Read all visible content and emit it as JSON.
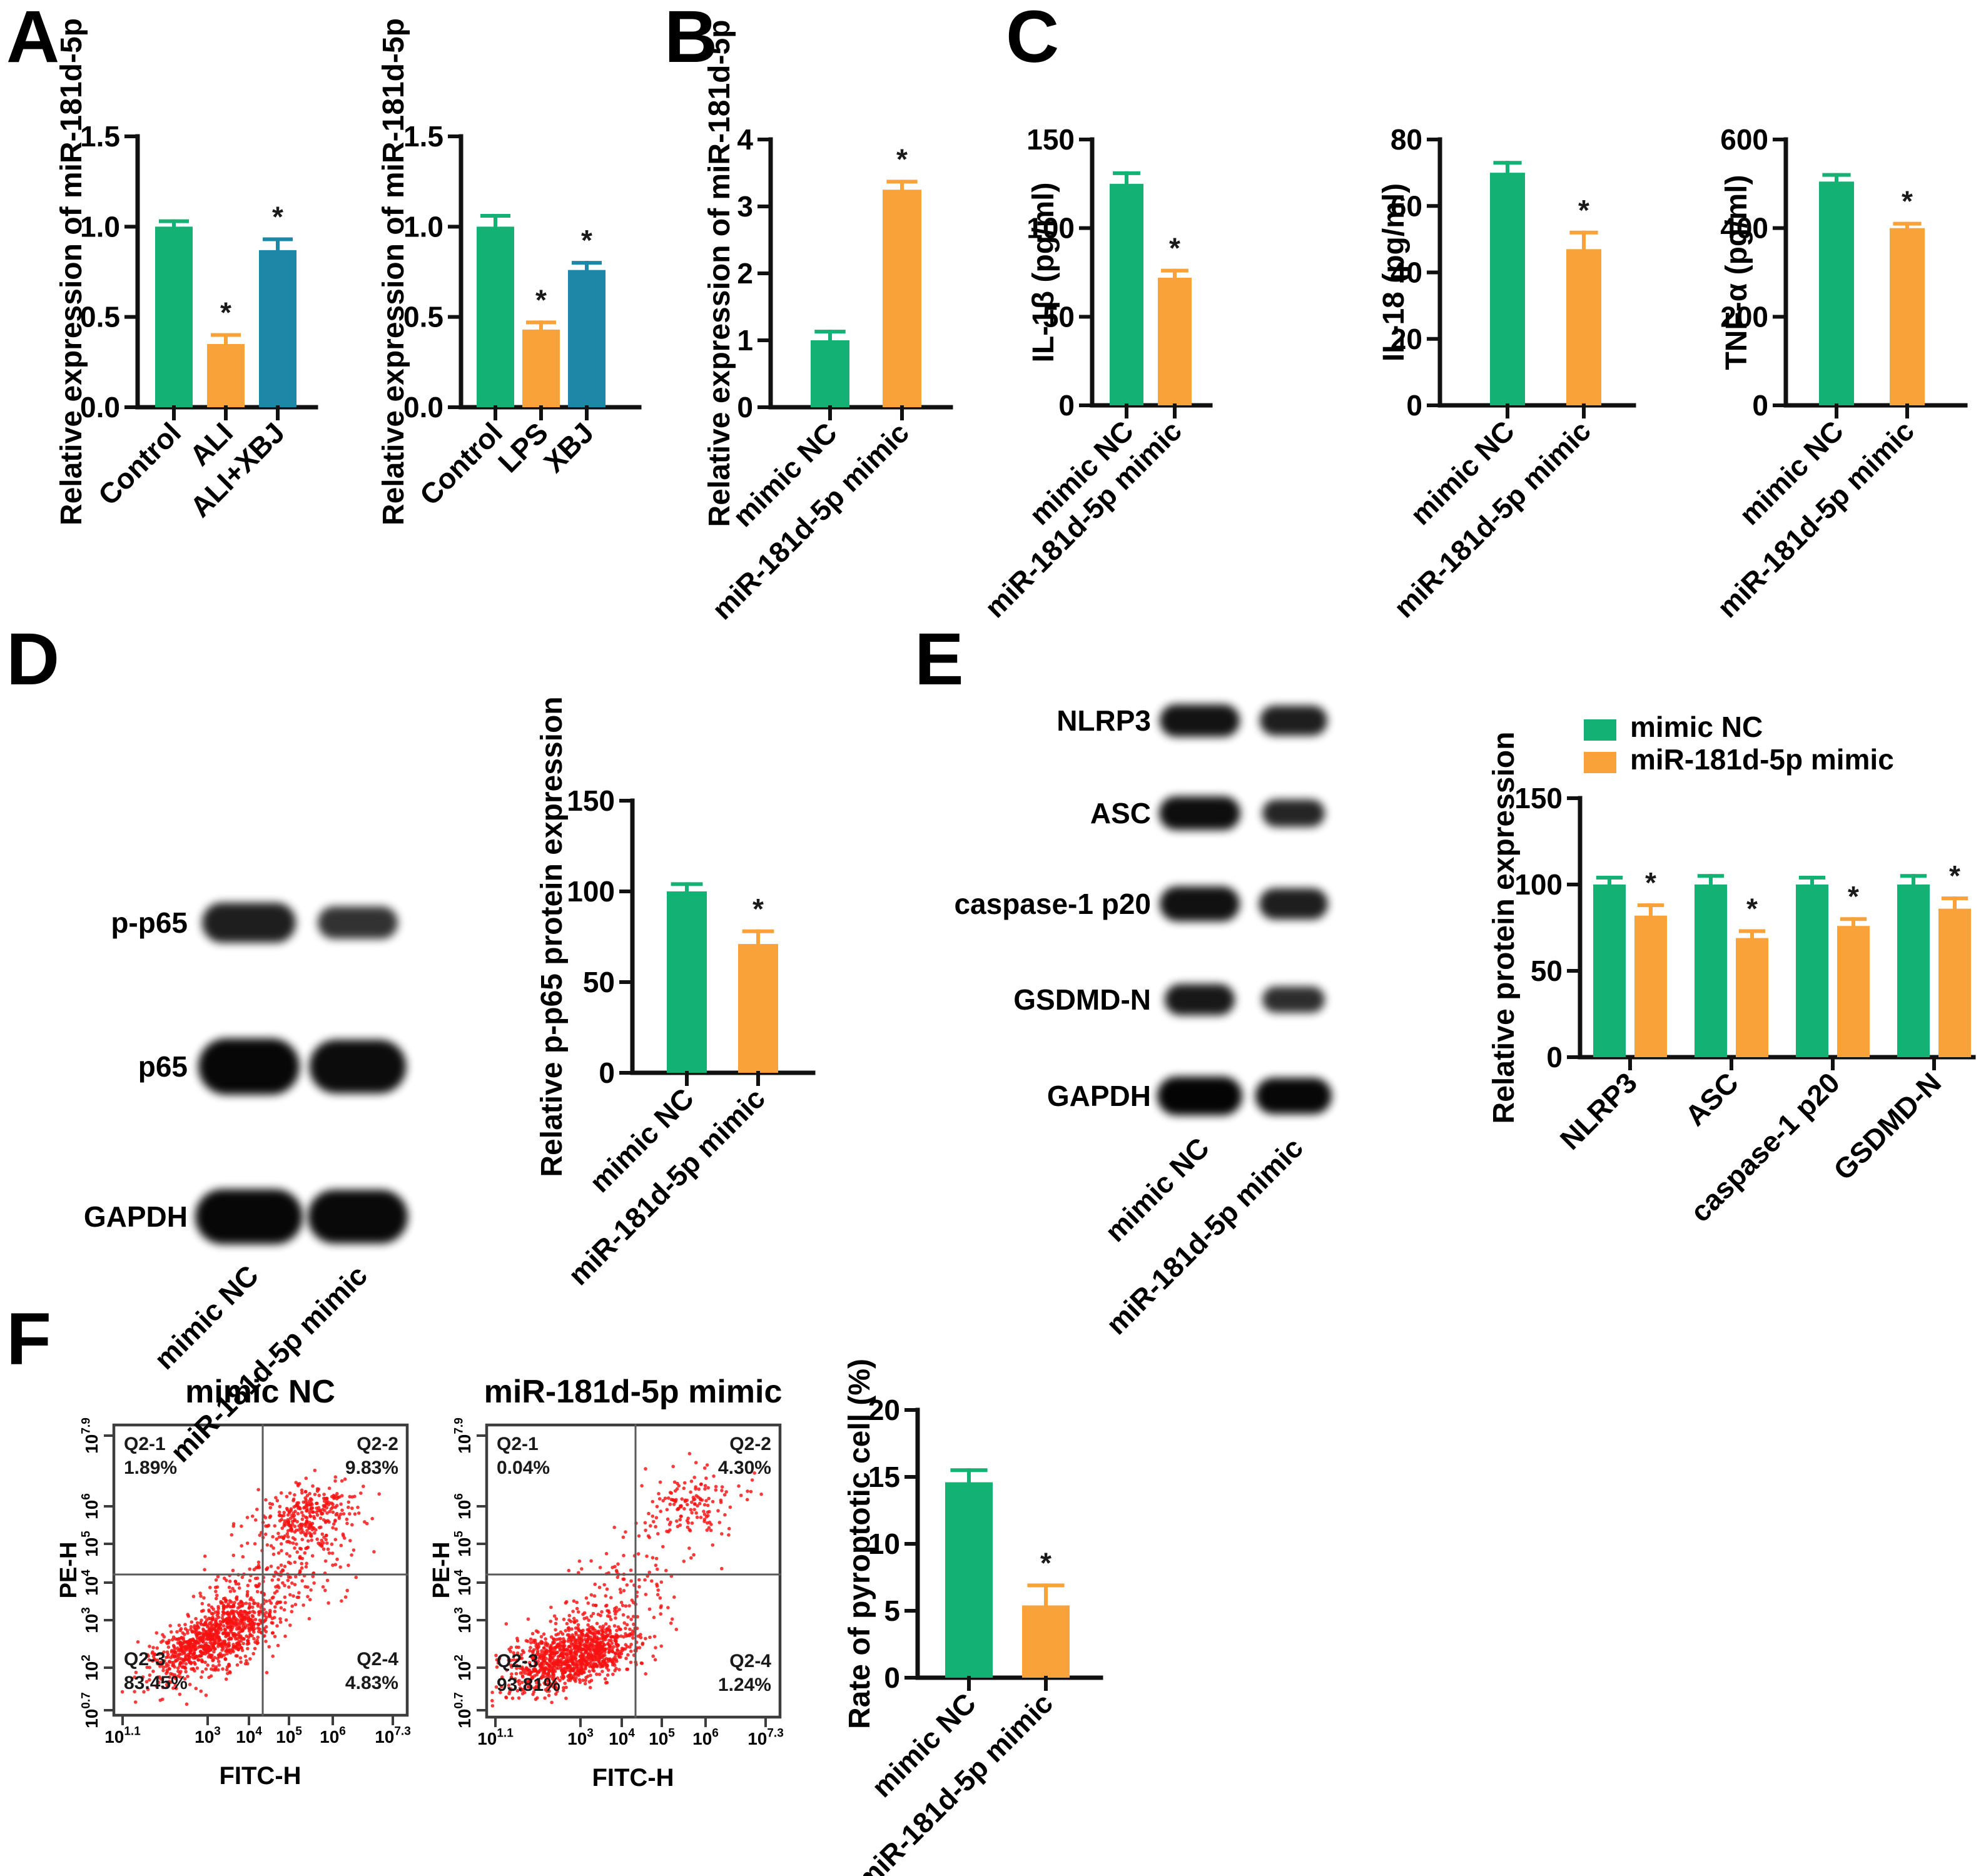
{
  "panels": {
    "A": {
      "label": "A"
    },
    "B": {
      "label": "B"
    },
    "C": {
      "label": "C"
    },
    "D": {
      "label": "D"
    },
    "E": {
      "label": "E"
    },
    "F": {
      "label": "F"
    }
  },
  "colors": {
    "green": "#13b173",
    "orange": "#f9a23a",
    "teal": "#1e86a6",
    "red": "#f71111",
    "axis": "#111111"
  },
  "chart_data": [
    {
      "id": "A1",
      "type": "bar",
      "ylabel": "Relative expression of miR-181d-5p",
      "categories": [
        "Control",
        "ALI",
        "ALI+XBJ"
      ],
      "values": [
        1.0,
        0.35,
        0.87
      ],
      "errors": [
        0.03,
        0.05,
        0.06
      ],
      "sig": [
        "",
        "*",
        "*"
      ],
      "bar_colors": [
        "green",
        "orange",
        "teal"
      ],
      "ylim": [
        0,
        1.5
      ],
      "yticks": [
        0,
        0.5,
        1.0,
        1.5
      ],
      "ytick_labels": [
        "0.0",
        "0.5",
        "1.0",
        "1.5"
      ]
    },
    {
      "id": "A2",
      "type": "bar",
      "ylabel": "Relative expression of miR-181d-5p",
      "categories": [
        "Control",
        "LPS",
        "XBJ"
      ],
      "values": [
        1.0,
        0.43,
        0.76
      ],
      "errors": [
        0.06,
        0.04,
        0.04
      ],
      "sig": [
        "",
        "*",
        "*"
      ],
      "bar_colors": [
        "green",
        "orange",
        "teal"
      ],
      "ylim": [
        0,
        1.5
      ],
      "yticks": [
        0,
        0.5,
        1.0,
        1.5
      ],
      "ytick_labels": [
        "0.0",
        "0.5",
        "1.0",
        "1.5"
      ]
    },
    {
      "id": "B",
      "type": "bar",
      "ylabel": "Relative expression of miR-181d-5p",
      "categories": [
        "mimic NC",
        "miR-181d-5p mimic"
      ],
      "values": [
        1.0,
        3.25
      ],
      "errors": [
        0.13,
        0.12
      ],
      "sig": [
        "",
        "*"
      ],
      "bar_colors": [
        "green",
        "orange"
      ],
      "ylim": [
        0,
        4
      ],
      "yticks": [
        0,
        1,
        2,
        3,
        4
      ],
      "ytick_labels": [
        "0",
        "1",
        "2",
        "3",
        "4"
      ]
    },
    {
      "id": "C1",
      "type": "bar",
      "ylabel": "IL-1β (pg/ml)",
      "categories": [
        "mimic NC",
        "miR-181d-5p mimic"
      ],
      "values": [
        125,
        72
      ],
      "errors": [
        6,
        4
      ],
      "sig": [
        "",
        "*"
      ],
      "bar_colors": [
        "green",
        "orange"
      ],
      "ylim": [
        0,
        150
      ],
      "yticks": [
        0,
        50,
        100,
        150
      ],
      "ytick_labels": [
        "0",
        "50",
        "100",
        "150"
      ]
    },
    {
      "id": "C2",
      "type": "bar",
      "ylabel": "IL-18 (pg/ml)",
      "categories": [
        "mimic NC",
        "miR-181d-5p mimic"
      ],
      "values": [
        70,
        47
      ],
      "errors": [
        3,
        5
      ],
      "sig": [
        "",
        "*"
      ],
      "bar_colors": [
        "green",
        "orange"
      ],
      "ylim": [
        0,
        80
      ],
      "yticks": [
        0,
        20,
        40,
        60,
        80
      ],
      "ytick_labels": [
        "0",
        "20",
        "40",
        "60",
        "80"
      ]
    },
    {
      "id": "C3",
      "type": "bar",
      "ylabel": "TNF-α (pg/ml)",
      "categories": [
        "mimic NC",
        "miR-181d-5p mimic"
      ],
      "values": [
        505,
        400
      ],
      "errors": [
        15,
        10
      ],
      "sig": [
        "",
        "*"
      ],
      "bar_colors": [
        "green",
        "orange"
      ],
      "ylim": [
        0,
        600
      ],
      "yticks": [
        0,
        200,
        400,
        600
      ],
      "ytick_labels": [
        "0",
        "200",
        "400",
        "600"
      ]
    },
    {
      "id": "D",
      "type": "bar",
      "ylabel": "Relative p-p65 protein expression",
      "categories": [
        "mimic NC",
        "miR-181d-5p mimic"
      ],
      "values": [
        100,
        71
      ],
      "errors": [
        4,
        7
      ],
      "sig": [
        "",
        "*"
      ],
      "bar_colors": [
        "green",
        "orange"
      ],
      "ylim": [
        0,
        150
      ],
      "yticks": [
        0,
        50,
        100,
        150
      ],
      "ytick_labels": [
        "0",
        "50",
        "100",
        "150"
      ]
    },
    {
      "id": "E",
      "type": "grouped_bar",
      "ylabel": "Relative protein expression",
      "categories": [
        "NLRP3",
        "ASC",
        "caspase-1 p20",
        "GSDMD-N"
      ],
      "series": [
        {
          "name": "mimic NC",
          "color": "green",
          "values": [
            100,
            100,
            100,
            100
          ],
          "errors": [
            4,
            5,
            4,
            5
          ],
          "sig": [
            "",
            "",
            "",
            ""
          ]
        },
        {
          "name": "miR-181d-5p mimic",
          "color": "orange",
          "values": [
            82,
            69,
            76,
            86
          ],
          "errors": [
            6,
            4,
            4,
            6
          ],
          "sig": [
            "*",
            "*",
            "*",
            "*"
          ]
        }
      ],
      "legend": [
        "mimic NC",
        "miR-181d-5p mimic"
      ],
      "ylim": [
        0,
        150
      ],
      "yticks": [
        0,
        50,
        100,
        150
      ],
      "ytick_labels": [
        "0",
        "50",
        "100",
        "150"
      ]
    },
    {
      "id": "F",
      "type": "bar",
      "ylabel": "Rate of pyroptotic cell (%)",
      "categories": [
        "mimic NC",
        "miR-181d-5p mimic"
      ],
      "values": [
        14.6,
        5.4
      ],
      "errors": [
        0.9,
        1.5
      ],
      "sig": [
        "",
        "*"
      ],
      "bar_colors": [
        "green",
        "orange"
      ],
      "ylim": [
        0,
        20
      ],
      "yticks": [
        0,
        5,
        10,
        15,
        20
      ],
      "ytick_labels": [
        "0",
        "5",
        "10",
        "15",
        "20"
      ]
    },
    {
      "id": "F1",
      "type": "flow_scatter",
      "title": "mimic NC",
      "xlabel": "FITC-H",
      "ylabel": "PE-H",
      "quadrants": [
        {
          "name": "Q2-1",
          "value": "1.89%"
        },
        {
          "name": "Q2-2",
          "value": "9.83%"
        },
        {
          "name": "Q2-3",
          "value": "83.45%"
        },
        {
          "name": "Q2-4",
          "value": "4.83%"
        }
      ],
      "x_ticks": [
        "10^1.1",
        "10^3",
        "10^4",
        "10^5",
        "10^6",
        "10^7.3"
      ],
      "y_ticks": [
        "10^7.9",
        "10^6",
        "10^5",
        "10^4",
        "10^3",
        "10^2",
        "10^0.7"
      ]
    },
    {
      "id": "F2",
      "type": "flow_scatter",
      "title": "miR-181d-5p mimic",
      "xlabel": "FITC-H",
      "ylabel": "PE-H",
      "quadrants": [
        {
          "name": "Q2-1",
          "value": "0.04%"
        },
        {
          "name": "Q2-2",
          "value": "4.30%"
        },
        {
          "name": "Q2-3",
          "value": "93.81%"
        },
        {
          "name": "Q2-4",
          "value": "1.24%"
        }
      ],
      "x_ticks": [
        "10^1.1",
        "10^3",
        "10^4",
        "10^5",
        "10^6",
        "10^7.3"
      ],
      "y_ticks": [
        "10^7.9",
        "10^6",
        "10^5",
        "10^4",
        "10^3",
        "10^2",
        "10^0.7"
      ]
    }
  ],
  "blots": {
    "D": {
      "rows": [
        "p-p65",
        "p65",
        "GAPDH"
      ],
      "lanes": [
        "mimic NC",
        "miR-181d-5p mimic"
      ]
    },
    "E": {
      "rows": [
        "NLRP3",
        "ASC",
        "caspase-1 p20",
        "GSDMD-N",
        "GAPDH"
      ],
      "lanes": [
        "mimic NC",
        "miR-181d-5p mimic"
      ]
    }
  }
}
